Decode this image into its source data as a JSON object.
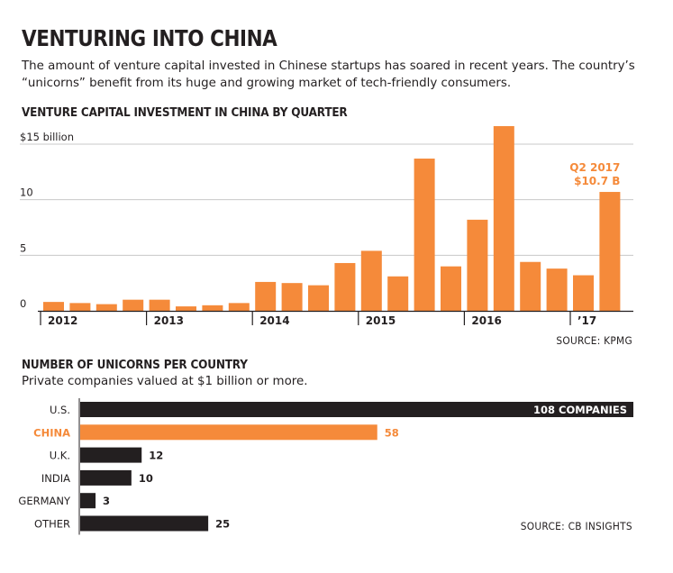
{
  "headline": "VENTURING INTO CHINA",
  "dek": "The amount of venture capital invested in Chinese startups has soared in recent years. The country’s “unicorns” benefit from its huge and growing market of tech-friendly consumers.",
  "colors": {
    "orange": "#f58a3a",
    "black": "#231f20",
    "grid": "#c8c8c8"
  },
  "chart_data": [
    {
      "type": "bar",
      "title": "VENTURE CAPITAL INVESTMENT IN CHINA BY QUARTER",
      "source": "SOURCE: KPMG",
      "ylim": [
        0,
        15
      ],
      "y_ticks": [
        {
          "value": 15,
          "label": "$15 billion"
        },
        {
          "value": 10,
          "label": "10"
        },
        {
          "value": 5,
          "label": "5"
        },
        {
          "value": 0,
          "label": "0"
        }
      ],
      "year_labels": [
        {
          "label": "2012",
          "start_index": 0
        },
        {
          "label": "2013",
          "start_index": 4
        },
        {
          "label": "2014",
          "start_index": 8
        },
        {
          "label": "2015",
          "start_index": 12
        },
        {
          "label": "2016",
          "start_index": 16
        },
        {
          "label": "’17",
          "start_index": 20
        }
      ],
      "categories": [
        "Q1 2012",
        "Q2 2012",
        "Q3 2012",
        "Q4 2012",
        "Q1 2013",
        "Q2 2013",
        "Q3 2013",
        "Q4 2013",
        "Q1 2014",
        "Q2 2014",
        "Q3 2014",
        "Q4 2014",
        "Q1 2015",
        "Q2 2015",
        "Q3 2015",
        "Q4 2015",
        "Q1 2016",
        "Q2 2016",
        "Q3 2016",
        "Q4 2016",
        "Q1 2017",
        "Q2 2017"
      ],
      "values": [
        0.8,
        0.7,
        0.6,
        1.0,
        1.0,
        0.4,
        0.5,
        0.7,
        2.6,
        2.5,
        2.3,
        4.3,
        5.4,
        3.1,
        13.7,
        4.0,
        8.2,
        16.8,
        4.4,
        3.8,
        3.2,
        10.7
      ],
      "annotation": {
        "index": 21,
        "line1": "Q2 2017",
        "line2": "$10.7 B"
      },
      "grid": true
    },
    {
      "type": "bar",
      "orientation": "horizontal",
      "title": "NUMBER OF UNICORNS PER COUNTRY",
      "subtitle": "Private companies valued at $1 billion or more.",
      "source": "SOURCE: CB INSIGHTS",
      "categories": [
        "U.S.",
        "CHINA",
        "U.K.",
        "INDIA",
        "GERMANY",
        "OTHER"
      ],
      "values": [
        108,
        58,
        12,
        10,
        3,
        25
      ],
      "value_labels": [
        "108 COMPANIES",
        "58",
        "12",
        "10",
        "3",
        "25"
      ],
      "highlight": "CHINA"
    }
  ]
}
